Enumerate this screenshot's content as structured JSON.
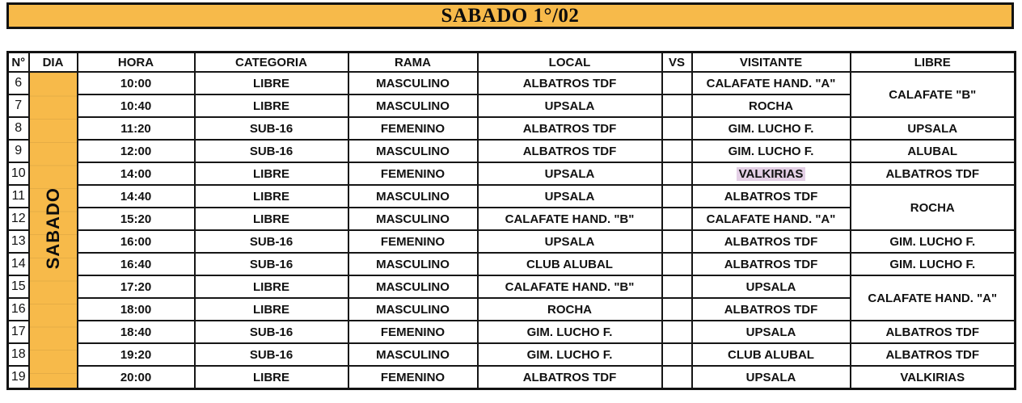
{
  "banner": {
    "title": "SABADO 1°/02"
  },
  "colors": {
    "accent_orange": "#F7BA4A",
    "highlight_lavender": "#E4D0E6",
    "border_black": "#161616"
  },
  "table": {
    "headers": [
      "N°",
      "DIA",
      "HORA",
      "CATEGORIA",
      "RAMA",
      "LOCAL",
      "VS",
      "VISITANTE",
      "LIBRE"
    ],
    "day_label": "SABADO",
    "rows": [
      {
        "n": "6",
        "hora": "10:00",
        "categoria": "LIBRE",
        "rama": "MASCULINO",
        "local": "ALBATROS TDF",
        "visitante": "CALAFATE HAND. \"A\"",
        "libre": "CALAFATE \"B\"",
        "libre_span": 2
      },
      {
        "n": "7",
        "hora": "10:40",
        "categoria": "LIBRE",
        "rama": "MASCULINO",
        "local": "UPSALA",
        "visitante": "ROCHA"
      },
      {
        "n": "8",
        "hora": "11:20",
        "categoria": "SUB-16",
        "rama": "FEMENINO",
        "local": "ALBATROS TDF",
        "visitante": "GIM. LUCHO F.",
        "libre": "UPSALA",
        "libre_span": 1
      },
      {
        "n": "9",
        "hora": "12:00",
        "categoria": "SUB-16",
        "rama": "MASCULINO",
        "local": "ALBATROS TDF",
        "visitante": "GIM. LUCHO F.",
        "libre": "ALUBAL",
        "libre_span": 1
      },
      {
        "n": "10",
        "hora": "14:00",
        "categoria": "LIBRE",
        "rama": "FEMENINO",
        "local": "UPSALA",
        "visitante": "VALKIRIAS",
        "visitante_highlight": true,
        "libre": "ALBATROS TDF",
        "libre_span": 1
      },
      {
        "n": "11",
        "hora": "14:40",
        "categoria": "LIBRE",
        "rama": "MASCULINO",
        "local": "UPSALA",
        "visitante": "ALBATROS TDF",
        "libre": "ROCHA",
        "libre_span": 2
      },
      {
        "n": "12",
        "hora": "15:20",
        "categoria": "LIBRE",
        "rama": "MASCULINO",
        "local": "CALAFATE HAND. \"B\"",
        "visitante": "CALAFATE HAND. \"A\""
      },
      {
        "n": "13",
        "hora": "16:00",
        "categoria": "SUB-16",
        "rama": "FEMENINO",
        "local": "UPSALA",
        "visitante": "ALBATROS TDF",
        "libre": "GIM. LUCHO F.",
        "libre_span": 1
      },
      {
        "n": "14",
        "hora": "16:40",
        "categoria": "SUB-16",
        "rama": "MASCULINO",
        "local": "CLUB ALUBAL",
        "visitante": "ALBATROS TDF",
        "libre": "GIM. LUCHO F.",
        "libre_span": 1
      },
      {
        "n": "15",
        "hora": "17:20",
        "categoria": "LIBRE",
        "rama": "MASCULINO",
        "local": "CALAFATE HAND. \"B\"",
        "visitante": "UPSALA",
        "libre": "CALAFATE HAND. \"A\"",
        "libre_span": 2
      },
      {
        "n": "16",
        "hora": "18:00",
        "categoria": "LIBRE",
        "rama": "MASCULINO",
        "local": "ROCHA",
        "visitante": "ALBATROS TDF"
      },
      {
        "n": "17",
        "hora": "18:40",
        "categoria": "SUB-16",
        "rama": "FEMENINO",
        "local": "GIM. LUCHO F.",
        "visitante": "UPSALA",
        "libre": "ALBATROS TDF",
        "libre_span": 1
      },
      {
        "n": "18",
        "hora": "19:20",
        "categoria": "SUB-16",
        "rama": "MASCULINO",
        "local": "GIM. LUCHO F.",
        "visitante": "CLUB ALUBAL",
        "libre": "ALBATROS TDF",
        "libre_span": 1
      },
      {
        "n": "19",
        "hora": "20:00",
        "categoria": "LIBRE",
        "rama": "FEMENINO",
        "local": "ALBATROS TDF",
        "visitante": "UPSALA",
        "libre": "VALKIRIAS",
        "libre_span": 1
      }
    ]
  }
}
